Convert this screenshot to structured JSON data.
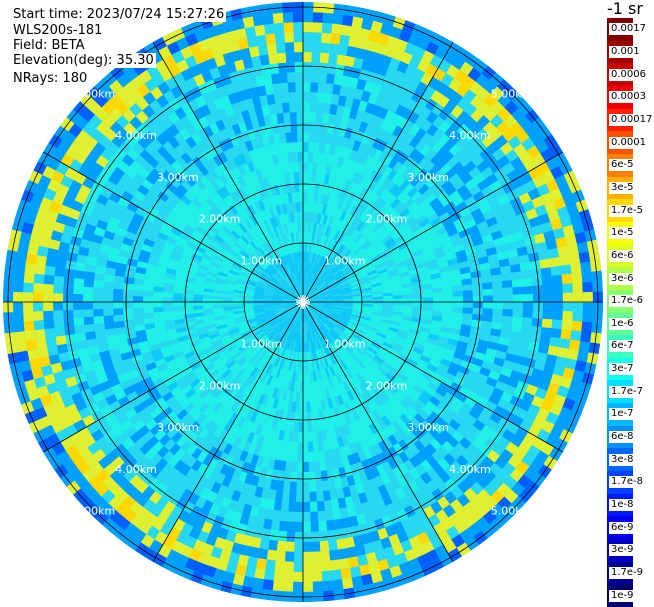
{
  "info": {
    "start_time": "Start time: 2023/07/24 15:27:26",
    "instrument": "WLS200s-181",
    "field": "Field: BETA",
    "elevation": "Elevation(deg): 35.30",
    "nrays": "NRays: 180"
  },
  "rings": {
    "labels": [
      "1.00km",
      "2.00km",
      "3.00km",
      "4.00km",
      "5.00km"
    ]
  },
  "colorbar": {
    "title": "-1 sr",
    "labels": [
      "0.0017",
      "0.001",
      "0.0006",
      "0.0003",
      "0.00017",
      "0.0001",
      "6e-5",
      "3e-5",
      "1.7e-5",
      "1e-5",
      "6e-6",
      "3e-6",
      "1.7e-6",
      "1e-6",
      "6e-7",
      "3e-7",
      "1.7e-7",
      "1e-7",
      "6e-8",
      "3e-8",
      "1.7e-8",
      "1e-8",
      "6e-9",
      "3e-9",
      "1.7e-9",
      "1e-9"
    ],
    "colors": [
      "#7f0000",
      "#a30000",
      "#c80000",
      "#ee0000",
      "#ff2000",
      "#ff5000",
      "#ff8000",
      "#ffaf00",
      "#ffd800",
      "#f8ff00",
      "#d8ff20",
      "#b0ff48",
      "#88ff70",
      "#60ff98",
      "#38ffc0",
      "#10ffe8",
      "#00dfff",
      "#00b8ff",
      "#0090ff",
      "#0068ff",
      "#0040ff",
      "#0018ff",
      "#0000ea",
      "#0000c0",
      "#000098",
      "#000070"
    ]
  },
  "scan_colors": {
    "center": "#10c8f8",
    "inner": "#20f0e8",
    "mid": "#28d8f0",
    "outer": "#00a0ff",
    "band": "#e0f030",
    "band_hot": "#ffd800",
    "edge": "#0060ff"
  }
}
